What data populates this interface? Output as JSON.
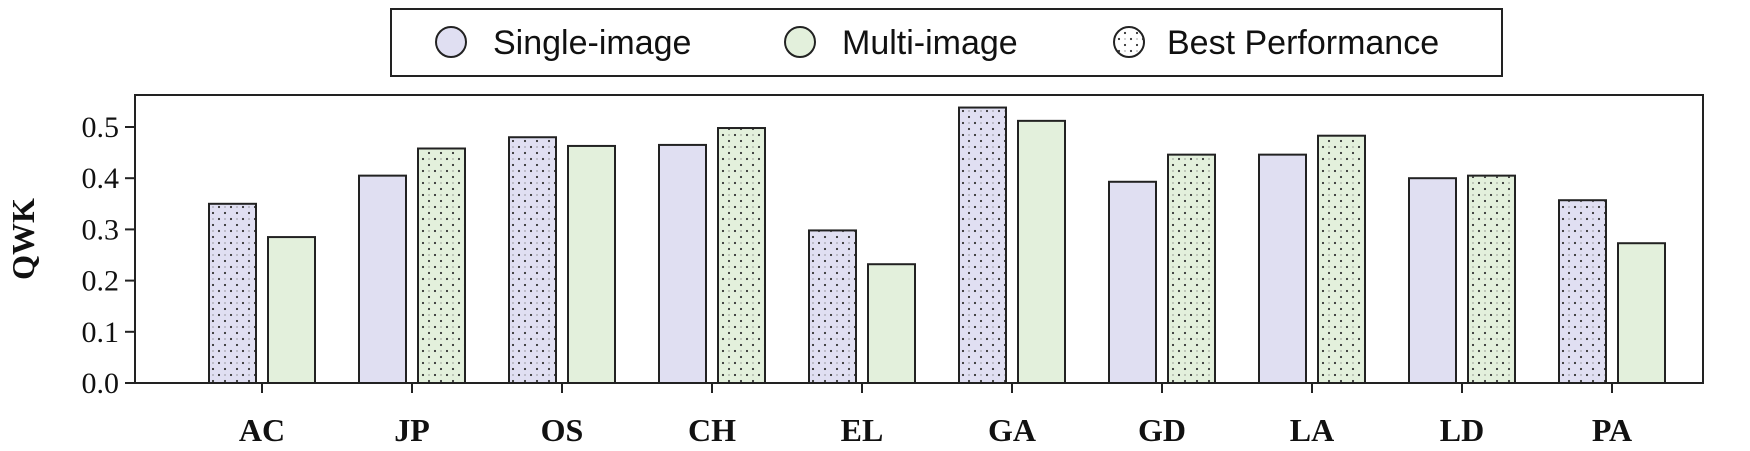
{
  "legend": {
    "items": [
      {
        "label": "Single-image",
        "color": "#e0dff2"
      },
      {
        "label": "Multi-image",
        "color": "#e3f0dc"
      },
      {
        "label": "Best Performance",
        "pattern": "dotted"
      }
    ]
  },
  "chart_data": {
    "type": "bar",
    "ylabel": "QWK",
    "ylim": [
      0.0,
      0.56
    ],
    "yticks": [
      "0.0",
      "0.1",
      "0.2",
      "0.3",
      "0.4",
      "0.5"
    ],
    "categories": [
      "AC",
      "JP",
      "OS",
      "CH",
      "EL",
      "GA",
      "GD",
      "LA",
      "LD",
      "PA"
    ],
    "series": [
      {
        "name": "Single-image",
        "color": "#e0dff2",
        "values": [
          0.35,
          0.405,
          0.48,
          0.465,
          0.298,
          0.538,
          0.393,
          0.446,
          0.4,
          0.357
        ]
      },
      {
        "name": "Multi-image",
        "color": "#e3f0dc",
        "values": [
          0.285,
          0.458,
          0.463,
          0.498,
          0.232,
          0.512,
          0.446,
          0.483,
          0.405,
          0.273
        ]
      }
    ],
    "best": [
      "Single-image",
      "Multi-image",
      "Single-image",
      "Multi-image",
      "Single-image",
      "Single-image",
      "Multi-image",
      "Multi-image",
      "Multi-image",
      "Single-image"
    ],
    "grid": false,
    "legend_position": "top-center"
  }
}
